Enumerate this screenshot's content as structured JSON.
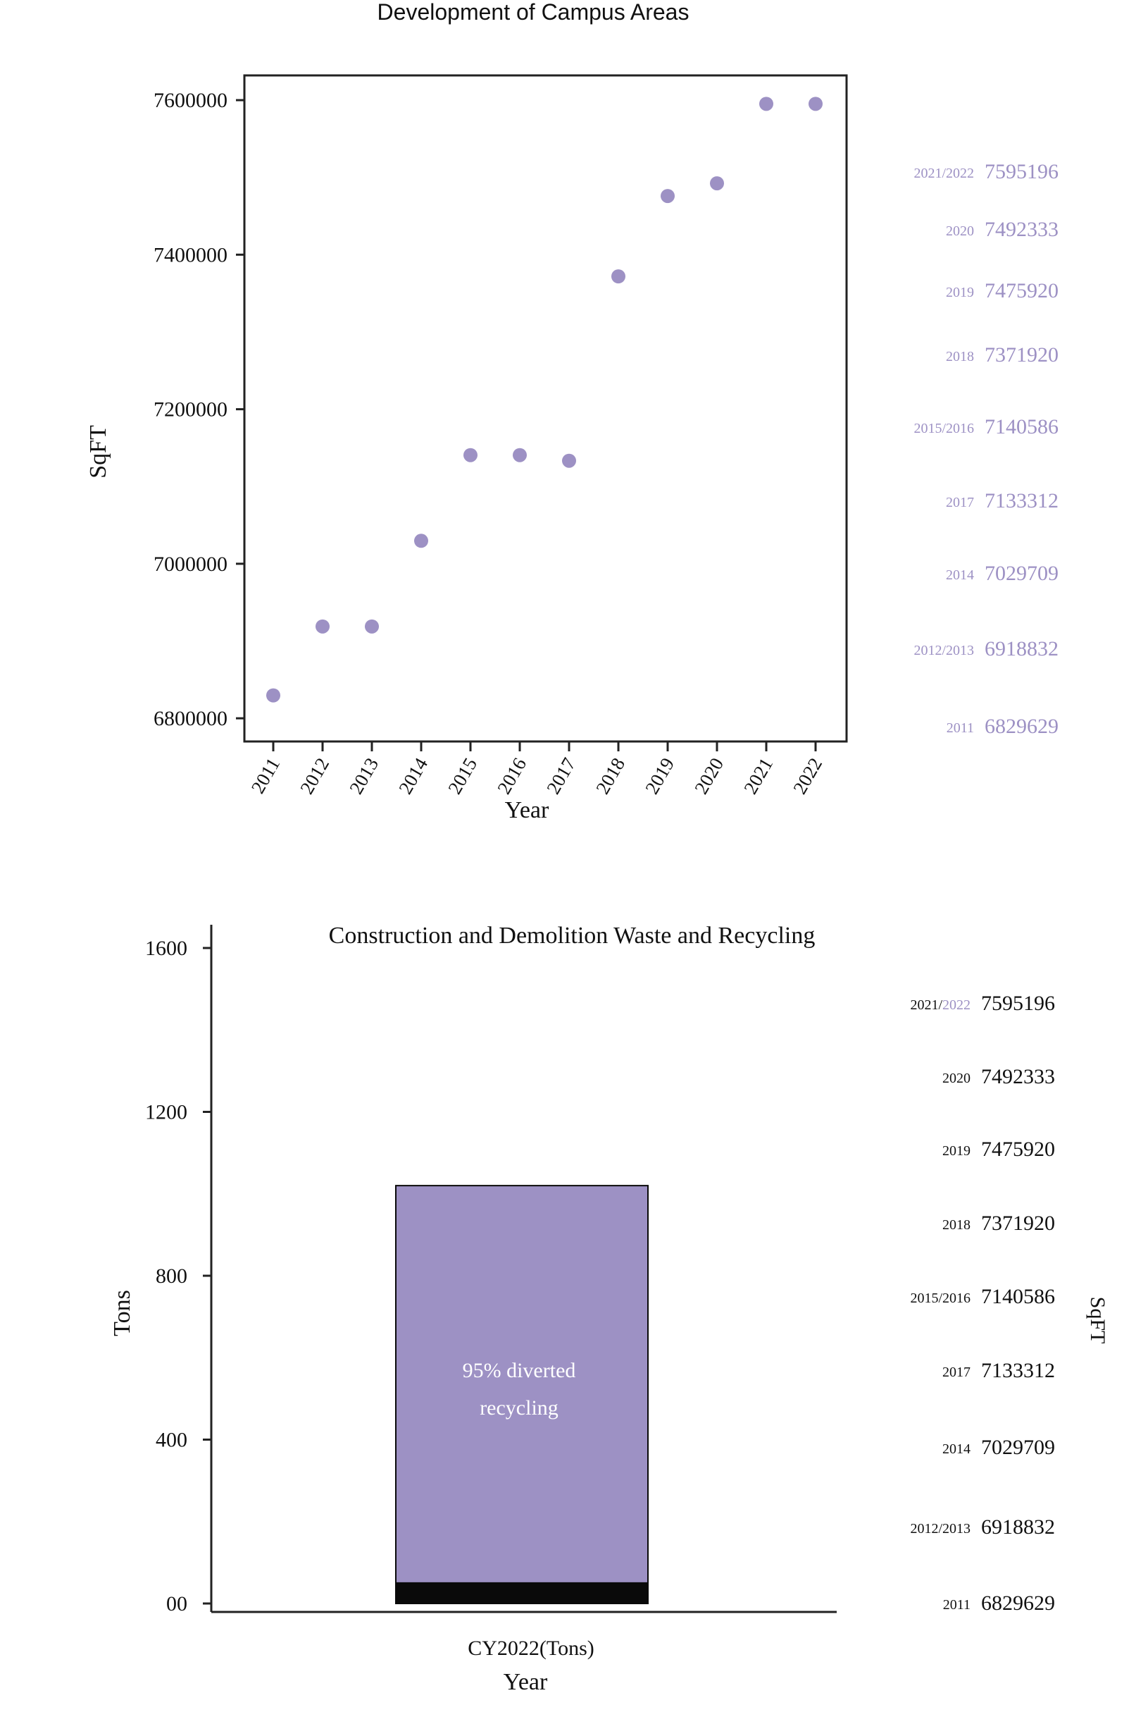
{
  "colors": {
    "accent": "#9d91c4",
    "dark": "#0a0a0a",
    "text": "#111111",
    "axis": "#222222"
  },
  "chart_data": [
    {
      "type": "scatter",
      "title": "Development of Campus Areas",
      "xlabel": "Year",
      "ylabel": "SqFT",
      "x": [
        "2011",
        "2012",
        "2013",
        "2014",
        "2015",
        "2016",
        "2017",
        "2018",
        "2019",
        "2020",
        "2021",
        "2022"
      ],
      "y": [
        6829629,
        6918832,
        6918832,
        7029709,
        7140586,
        7140586,
        7133312,
        7371920,
        7475920,
        7492333,
        7595196,
        7595196
      ],
      "ylim": [
        6770000,
        7632000
      ],
      "yticks": [
        6800000,
        7000000,
        7200000,
        7400000,
        7600000
      ],
      "ytick_labels": [
        "6800000",
        "7000000",
        "7200000",
        "7400000",
        "7600000"
      ],
      "grid": false,
      "side_labels": [
        {
          "year": "2021/2022",
          "value": "7595196"
        },
        {
          "year": "2020",
          "value": "7492333"
        },
        {
          "year": "2019",
          "value": "7475920"
        },
        {
          "year": "2018",
          "value": "7371920"
        },
        {
          "year": "2015/2016",
          "value": "7140586"
        },
        {
          "year": "2017",
          "value": "7133312"
        },
        {
          "year": "2014",
          "value": "7029709"
        },
        {
          "year": "2012/2013",
          "value": "6918832"
        },
        {
          "year": "2011",
          "value": "6829629"
        }
      ]
    },
    {
      "type": "bar",
      "title": "Construction and Demolition Waste and Recycling",
      "xlabel": "Year",
      "ylabel": "Tons",
      "right_label": "SqFT",
      "categories": [
        "CY2022(Tons)"
      ],
      "series": [
        {
          "values": [
            50
          ]
        },
        {
          "values": [
            970
          ]
        }
      ],
      "total": 1020,
      "annotation": [
        "95% diverted",
        "recycling"
      ],
      "ylim": [
        0,
        1600
      ],
      "yticks": [
        0,
        400,
        800,
        1200,
        1600
      ],
      "ytick_labels": [
        "00",
        "400",
        "800",
        "1200",
        "1600"
      ],
      "grid": false,
      "side_labels": [
        {
          "year_a": "2021/",
          "year_b": "2022",
          "value": "7595196"
        },
        {
          "year_a": "2020",
          "year_b": "",
          "value": "7492333"
        },
        {
          "year_a": "2019",
          "year_b": "",
          "value": "7475920"
        },
        {
          "year_a": "2018",
          "year_b": "",
          "value": "7371920"
        },
        {
          "year_a": "2015/2016",
          "year_b": "",
          "value": "7140586"
        },
        {
          "year_a": "2017",
          "year_b": "",
          "value": "7133312"
        },
        {
          "year_a": "2014",
          "year_b": "",
          "value": "7029709"
        },
        {
          "year_a": "2012/2013",
          "year_b": "",
          "value": "6918832"
        },
        {
          "year_a": "2011",
          "year_b": "",
          "value": "6829629"
        }
      ]
    }
  ]
}
